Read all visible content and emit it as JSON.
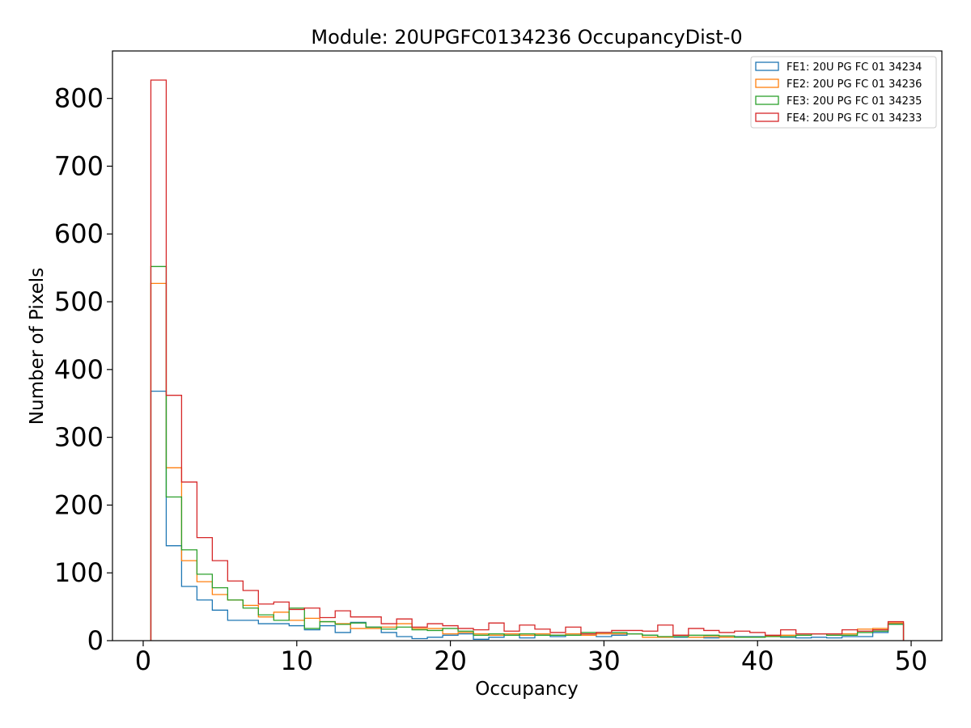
{
  "chart_data": {
    "type": "step-histogram",
    "title": "Module: 20UPGFC0134236 OccupancyDist-0",
    "xlabel": "Occupancy",
    "ylabel": "Number of Pixels",
    "xlim": [
      -2,
      52
    ],
    "ylim": [
      0,
      870
    ],
    "xticks": [
      0,
      10,
      20,
      30,
      40,
      50
    ],
    "yticks": [
      0,
      100,
      200,
      300,
      400,
      500,
      600,
      700,
      800
    ],
    "xtick_labels": [
      "0",
      "10",
      "20",
      "30",
      "40",
      "50"
    ],
    "ytick_labels": [
      "0",
      "100",
      "200",
      "300",
      "400",
      "500",
      "600",
      "700",
      "800"
    ],
    "legend_position": "top-right",
    "bin_edges": [
      0.5,
      1.5,
      2.5,
      3.5,
      4.5,
      5.5,
      6.5,
      7.5,
      8.5,
      9.5,
      10.5,
      11.5,
      12.5,
      13.5,
      14.5,
      15.5,
      16.5,
      17.5,
      18.5,
      19.5,
      20.5,
      21.5,
      22.5,
      23.5,
      24.5,
      25.5,
      26.5,
      27.5,
      28.5,
      29.5,
      30.5,
      31.5,
      32.5,
      33.5,
      34.5,
      35.5,
      36.5,
      37.5,
      38.5,
      39.5,
      40.5,
      41.5,
      42.5,
      43.5,
      44.5,
      45.5,
      46.5,
      47.5,
      48.5,
      49.5
    ],
    "series": [
      {
        "name": "FE1: 20U PG FC 01 34234",
        "color": "#1f77b4",
        "values": [
          368,
          140,
          80,
          60,
          45,
          30,
          30,
          25,
          25,
          22,
          16,
          22,
          12,
          27,
          20,
          12,
          6,
          3,
          5,
          8,
          10,
          2,
          5,
          8,
          4,
          8,
          6,
          8,
          10,
          6,
          8,
          10,
          8,
          5,
          5,
          5,
          4,
          5,
          6,
          6,
          7,
          5,
          4,
          5,
          4,
          6,
          6,
          12,
          25
        ]
      },
      {
        "name": "FE2: 20U PG FC 01 34236",
        "color": "#ff7f0e",
        "values": [
          527,
          255,
          118,
          87,
          68,
          60,
          52,
          35,
          42,
          30,
          33,
          28,
          25,
          18,
          18,
          20,
          25,
          18,
          18,
          10,
          12,
          10,
          8,
          10,
          8,
          10,
          8,
          10,
          8,
          10,
          10,
          10,
          5,
          5,
          8,
          5,
          6,
          5,
          5,
          5,
          7,
          8,
          8,
          10,
          10,
          10,
          17,
          18,
          26
        ]
      },
      {
        "name": "FE3: 20U PG FC 01 34235",
        "color": "#2ca02c",
        "values": [
          552,
          212,
          134,
          98,
          78,
          60,
          48,
          38,
          30,
          48,
          18,
          28,
          24,
          26,
          20,
          17,
          20,
          16,
          15,
          18,
          14,
          8,
          10,
          8,
          10,
          8,
          8,
          8,
          12,
          12,
          12,
          10,
          8,
          6,
          6,
          8,
          8,
          7,
          5,
          5,
          6,
          6,
          8,
          10,
          8,
          8,
          12,
          14,
          24
        ]
      },
      {
        "name": "FE4: 20U PG FC 01 34233",
        "color": "#d62728",
        "values": [
          827,
          362,
          234,
          152,
          118,
          88,
          74,
          54,
          57,
          46,
          48,
          34,
          44,
          35,
          35,
          25,
          32,
          20,
          25,
          22,
          18,
          16,
          26,
          14,
          23,
          17,
          12,
          20,
          10,
          12,
          15,
          15,
          14,
          23,
          8,
          18,
          15,
          12,
          14,
          12,
          8,
          16,
          10,
          10,
          10,
          16,
          14,
          16,
          28
        ]
      }
    ]
  }
}
